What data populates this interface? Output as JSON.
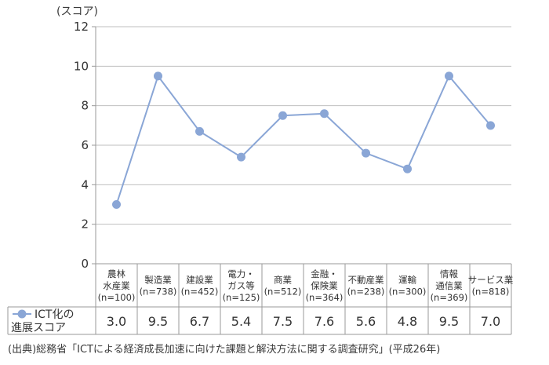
{
  "chart_data": {
    "type": "line",
    "y_unit_label": "(スコア)",
    "yticks": [
      0,
      2,
      4,
      6,
      8,
      10,
      12
    ],
    "ylim": [
      0,
      12
    ],
    "grid": true,
    "categories": [
      {
        "lines": [
          "農林",
          "水産業",
          "(n=100)"
        ]
      },
      {
        "lines": [
          "製造業",
          "(n=738)"
        ]
      },
      {
        "lines": [
          "建設業",
          "(n=452)"
        ]
      },
      {
        "lines": [
          "電力・",
          "ガス等",
          "(n=125)"
        ]
      },
      {
        "lines": [
          "商業",
          "(n=512)"
        ]
      },
      {
        "lines": [
          "金融・",
          "保険業",
          "(n=364)"
        ]
      },
      {
        "lines": [
          "不動産業",
          "(n=238)"
        ]
      },
      {
        "lines": [
          "運輸",
          "(n=300)"
        ]
      },
      {
        "lines": [
          "情報",
          "通信業",
          "(n=369)"
        ]
      },
      {
        "lines": [
          "サービス業",
          "(n=818)"
        ]
      }
    ],
    "series": [
      {
        "name_lines": [
          "ICT化の",
          "進展スコア"
        ],
        "values": [
          3.0,
          9.5,
          6.7,
          5.4,
          7.5,
          7.6,
          5.6,
          4.8,
          9.5,
          7.0
        ],
        "value_labels": [
          "3.0",
          "9.5",
          "6.7",
          "5.4",
          "7.5",
          "7.6",
          "5.6",
          "4.8",
          "9.5",
          "7.0"
        ],
        "color": "#8aa6d6"
      }
    ]
  },
  "source": "(出典)総務省「ICTによる経済成長加速に向けた課題と解決方法に関する調査研究」(平成26年)"
}
